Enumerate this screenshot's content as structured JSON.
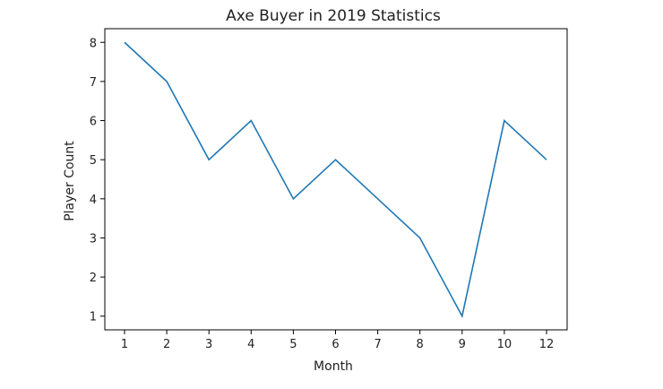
{
  "chart_data": {
    "type": "line",
    "title": "Axe Buyer in 2019 Statistics",
    "xlabel": "Month",
    "ylabel": "Player Count",
    "x": [
      1,
      2,
      3,
      4,
      5,
      6,
      7,
      8,
      9,
      10,
      12
    ],
    "x_ticks": [
      "1",
      "2",
      "3",
      "4",
      "5",
      "6",
      "7",
      "8",
      "9",
      "10",
      "12"
    ],
    "y_ticks": [
      "1",
      "2",
      "3",
      "4",
      "5",
      "6",
      "7",
      "8"
    ],
    "series": [
      {
        "values": [
          8,
          7,
          5,
          6,
          4,
          5,
          4,
          3,
          1,
          6,
          5
        ],
        "color": "#1f77b4"
      }
    ],
    "ylim": [
      0.65,
      8.35
    ],
    "grid": false,
    "legend": "none"
  }
}
